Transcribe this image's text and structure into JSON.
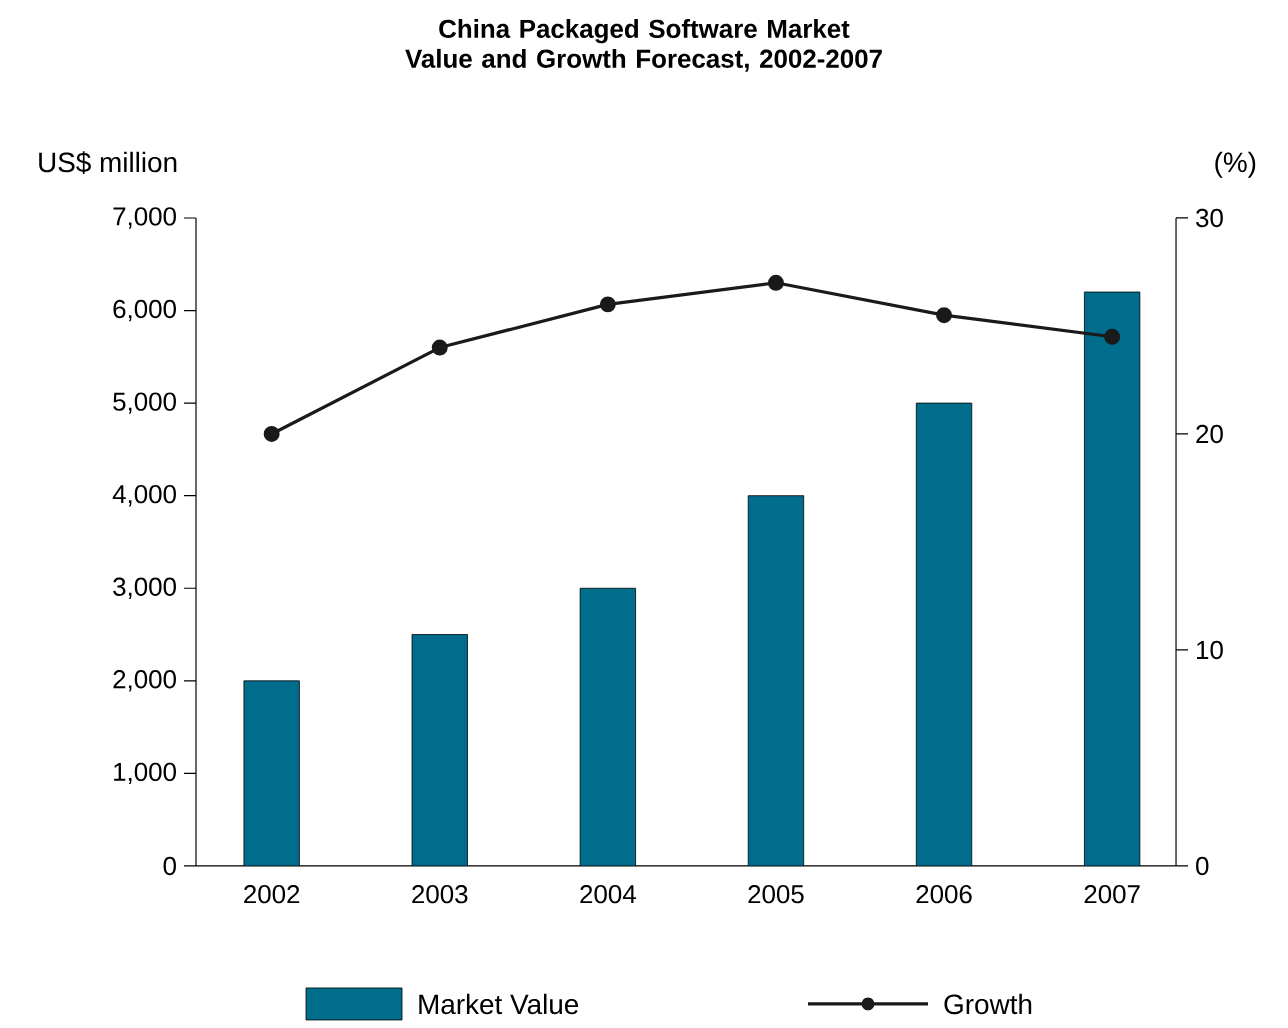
{
  "chart_data": {
    "type": "bar",
    "title": "China Packaged Software Market Value and Growth Forecast, 2002-2007",
    "ylabel": "US$ million",
    "y2label": "(%)",
    "categories": [
      "2002",
      "2003",
      "2004",
      "2005",
      "2006",
      "2007"
    ],
    "series": [
      {
        "name": "Market Value",
        "color": "#006d8c",
        "values": [
          2000,
          2500,
          3000,
          4000,
          5000,
          6200
        ]
      },
      {
        "name": "Growth",
        "type": "line",
        "axis": "y2",
        "color": "#1a1a1a",
        "values": [
          20,
          24,
          26,
          27,
          25.5,
          24.5
        ]
      }
    ],
    "ylim": [
      0,
      7000
    ],
    "yticks": [
      0,
      {
        "value": 1000,
        "label": "1,000"
      },
      {
        "value": 2000,
        "label": "2,000"
      },
      {
        "value": 3000,
        "label": "3,000"
      },
      {
        "value": 4000,
        "label": "4,000"
      },
      {
        "value": 5000,
        "label": "5,000"
      },
      {
        "value": 6000,
        "label": "6,000"
      },
      {
        "value": 7000,
        "label": "7,000"
      }
    ],
    "y2lim": [
      0,
      30
    ],
    "y2ticks": [
      0,
      10,
      20,
      30
    ],
    "marker": "circle",
    "line_style": "solid",
    "legend": "bottom"
  }
}
